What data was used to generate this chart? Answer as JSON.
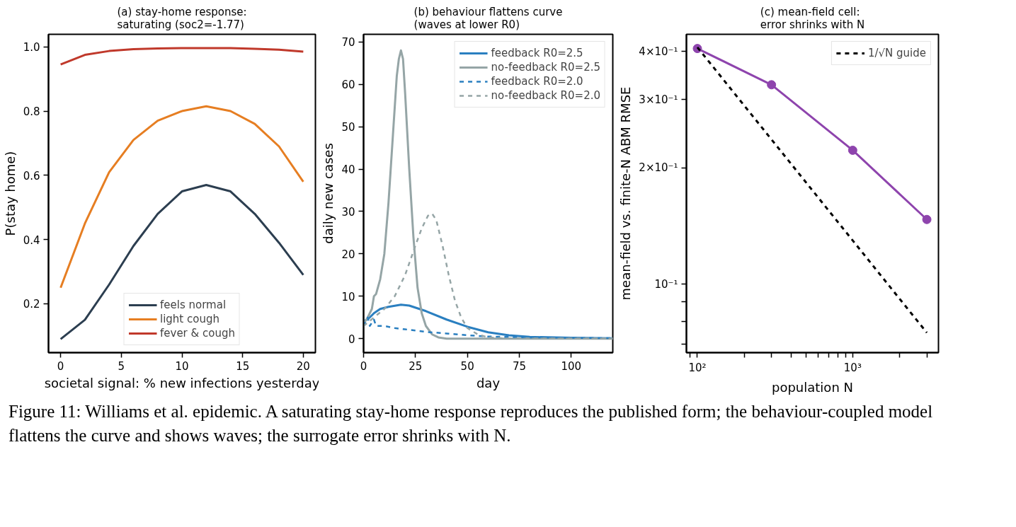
{
  "chart_data": [
    {
      "type": "line",
      "title": "(a) stay-home response:\nsaturating (soc2=-1.77)",
      "xlabel": "societal signal: % new infections yesterday",
      "ylabel": "P(stay home)",
      "x": [
        0,
        2,
        4,
        6,
        8,
        10,
        12,
        14,
        16,
        18,
        20
      ],
      "xlim": [
        -1,
        21
      ],
      "ylim": [
        0.048,
        1.039
      ],
      "xticks": [
        0,
        5,
        10,
        15,
        20
      ],
      "yticks": [
        0.2,
        0.4,
        0.6,
        0.8,
        {
          "value": 1,
          "label": "1.0"
        }
      ],
      "legend": "bottom",
      "grid": false,
      "series": [
        {
          "name": "feels normal",
          "color": "#2c3e50",
          "values": [
            0.09,
            0.15,
            0.26,
            0.38,
            0.48,
            0.55,
            0.57,
            0.55,
            0.48,
            0.39,
            0.29
          ]
        },
        {
          "name": "light cough",
          "color": "#e67e22",
          "values": [
            0.25,
            0.45,
            0.61,
            0.71,
            0.77,
            0.8,
            0.815,
            0.8,
            0.76,
            0.69,
            0.58
          ]
        },
        {
          "name": "fever & cough",
          "color": "#c0392b",
          "values": [
            0.945,
            0.975,
            0.987,
            0.993,
            0.995,
            0.996,
            0.996,
            0.996,
            0.994,
            0.991,
            0.985
          ]
        }
      ],
      "annotations": [
        "Figure 11: Williams et al. epidemic. A saturating stay-home response reproduces the published form; the behaviour-coupled model flattens the curve and shows waves; the surrogate error shrinks with N."
      ]
    },
    {
      "type": "line",
      "title": "(b) behaviour flattens curve\n(waves at lower R0)",
      "xlabel": "day",
      "ylabel": "daily new cases",
      "xlim": [
        0,
        120
      ],
      "ylim": [
        -3.3,
        71.8
      ],
      "xticks": [
        0,
        25,
        50,
        75,
        100
      ],
      "yticks": [
        0,
        10,
        20,
        30,
        40,
        50,
        60,
        70
      ],
      "legend": "top right",
      "grid": false,
      "series": [
        {
          "name": "feedback R0=2.5",
          "color": "#2a7fc0",
          "line_style": "solid",
          "x": [
            0,
            3,
            5,
            8,
            12,
            18,
            22,
            30,
            40,
            50,
            60,
            70,
            80,
            100,
            120
          ],
          "values": [
            4,
            5,
            6,
            7,
            7.5,
            8,
            7.8,
            6.5,
            4.5,
            2.8,
            1.5,
            0.8,
            0.4,
            0.2,
            0.1
          ]
        },
        {
          "name": "no-feedback R0=2.5",
          "color": "#95a5a6",
          "line_style": "solid",
          "x": [
            0,
            2,
            4,
            5,
            6,
            8,
            10,
            12,
            14,
            16,
            17,
            18,
            19,
            20,
            22,
            24,
            26,
            28,
            30,
            33,
            36,
            40,
            120
          ],
          "values": [
            3.5,
            5,
            7,
            10,
            10.5,
            14,
            20,
            32,
            47,
            62,
            66,
            68,
            66,
            58,
            40,
            24,
            12,
            6,
            3,
            1,
            0.3,
            0,
            0
          ]
        },
        {
          "name": "feedback R0=2.0",
          "color": "#2a7fc0",
          "line_style": "dashed",
          "x": [
            0,
            2,
            3,
            5,
            6,
            10,
            15,
            20,
            30,
            40,
            50,
            60,
            80,
            100,
            120
          ],
          "values": [
            3,
            5,
            3,
            4.5,
            3,
            3,
            2.5,
            2.2,
            1.6,
            1.2,
            0.8,
            0.5,
            0.3,
            0.2,
            0.1
          ]
        },
        {
          "name": "no-feedback R0=2.0",
          "color": "#95a5a6",
          "line_style": "dashed",
          "x": [
            0,
            5,
            10,
            15,
            20,
            25,
            28,
            31,
            33,
            35,
            38,
            41,
            44,
            47,
            50,
            55,
            60,
            70,
            120
          ],
          "values": [
            3,
            5,
            7,
            10,
            15,
            22,
            26,
            29,
            29.5,
            28,
            22,
            15,
            9,
            5,
            2.5,
            1,
            0.3,
            0,
            0
          ]
        }
      ]
    },
    {
      "type": "line",
      "title": "(c) mean-field cell:\nerror shrinks with N",
      "xlabel": "population N",
      "ylabel": "mean-field vs. finite-N ABM RMSE",
      "log": "xy",
      "xlim": [
        85,
        3565
      ],
      "ylim": [
        0.0665,
        0.443
      ],
      "legend": "top right",
      "grid": false,
      "xticks": [
        {
          "value": 90,
          "label": null
        },
        {
          "value": 100,
          "label": "10²"
        },
        {
          "value": 200,
          "label": null
        },
        {
          "value": 300,
          "label": null
        },
        {
          "value": 400,
          "label": null
        },
        {
          "value": 500,
          "label": null
        },
        {
          "value": 600,
          "label": null
        },
        {
          "value": 700,
          "label": null
        },
        {
          "value": 800,
          "label": null
        },
        {
          "value": 900,
          "label": null
        },
        {
          "value": 1000,
          "label": "10³"
        },
        {
          "value": 2000,
          "label": null
        },
        {
          "value": 3000,
          "label": null
        }
      ],
      "yticks": [
        {
          "value": 0.07,
          "label": null
        },
        {
          "value": 0.08,
          "label": null
        },
        {
          "value": 0.09,
          "label": null
        },
        {
          "value": 0.1,
          "label": "10⁻¹"
        },
        {
          "value": 0.2,
          "label": "2×10⁻¹"
        },
        {
          "value": 0.3,
          "label": "3×10⁻¹"
        },
        {
          "value": 0.4,
          "label": "4×10⁻¹"
        }
      ],
      "series": [
        {
          "color": "#8e44ad",
          "marker": "circle",
          "line_style": "solid",
          "x": [
            100,
            300,
            1000,
            3000
          ],
          "values": [
            0.407,
            0.328,
            0.222,
            0.147
          ]
        },
        {
          "name": "1/√N guide",
          "color": "#000000",
          "marker": "none",
          "line_style": "dashed",
          "x": [
            100,
            3000
          ],
          "values": [
            0.41,
            0.0749
          ]
        }
      ]
    }
  ]
}
